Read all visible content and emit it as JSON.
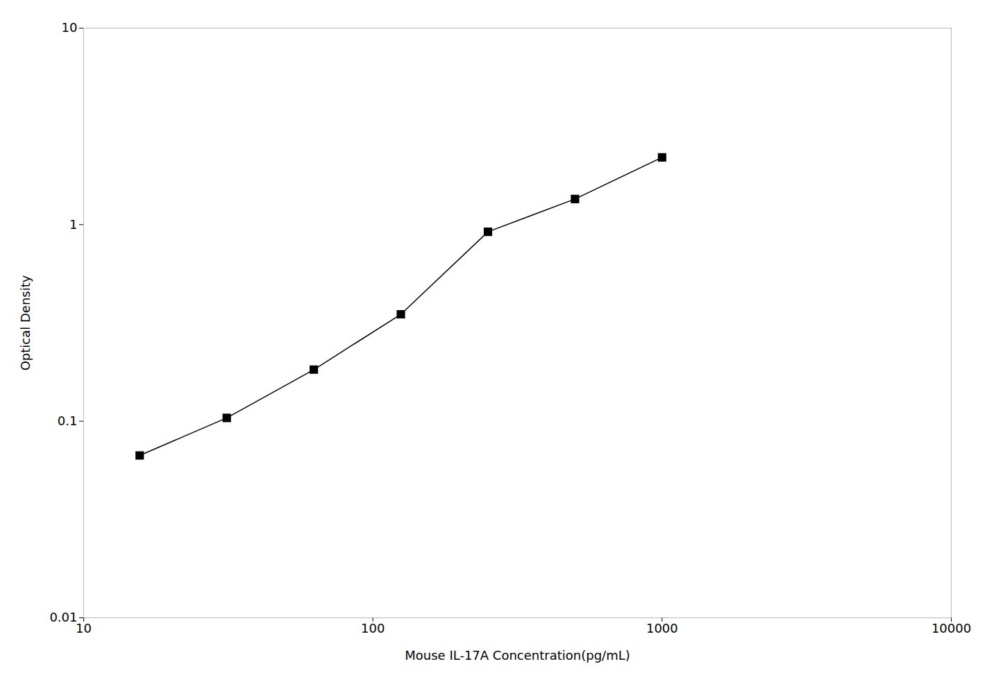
{
  "chart_data": {
    "type": "line",
    "x": [
      15.625,
      31.25,
      62.5,
      125,
      250,
      500,
      1000
    ],
    "values": [
      0.067,
      0.104,
      0.183,
      0.35,
      0.92,
      1.35,
      2.2
    ],
    "xlabel": "Mouse IL-17A Concentration(pg/mL)",
    "ylabel": "Optical Density",
    "xlim": [
      10,
      10000
    ],
    "ylim": [
      0.01,
      10
    ],
    "xticks": [
      10,
      100,
      1000,
      10000
    ],
    "yticks": [
      0.01,
      0.1,
      1,
      10
    ],
    "log": true,
    "grid": false,
    "color": "#000000",
    "marker": "square"
  }
}
